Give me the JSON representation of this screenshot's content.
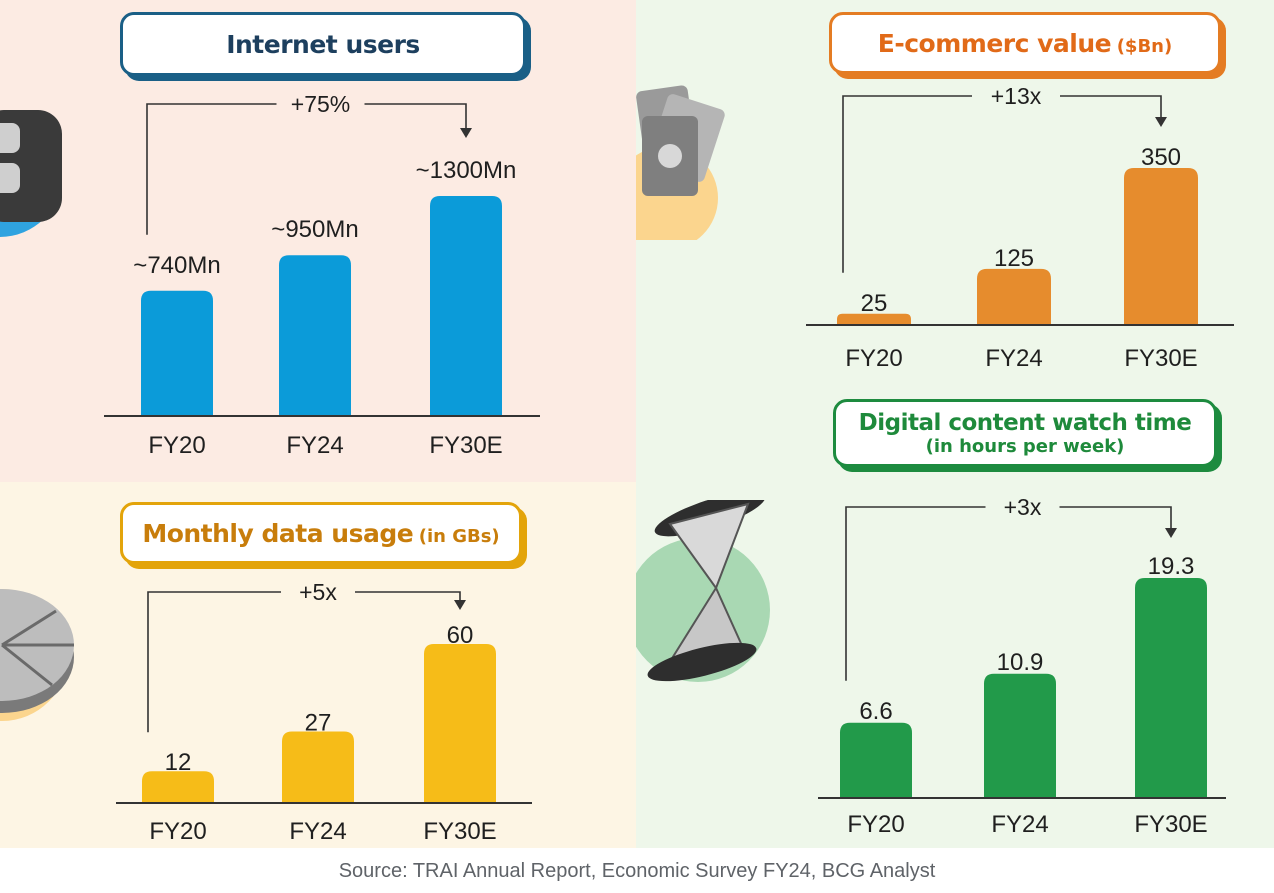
{
  "source": "Source: TRAI Annual Report, Economic Survey FY24, BCG Analyst",
  "colors": {
    "internet": "#0b9bd9",
    "ecommerce": "#e68c2d",
    "data": "#f6bc18",
    "watch": "#229a4a"
  },
  "icons": {
    "internet": "phone-icon",
    "ecommerce": "money-icon",
    "data": "pie-chart-icon",
    "watch": "hourglass-icon"
  },
  "chart_data": [
    {
      "id": "internet",
      "type": "bar",
      "title": "Internet users",
      "subtitle": "",
      "categories": [
        "FY20",
        "FY24",
        "FY30E"
      ],
      "values": [
        740,
        950,
        1300
      ],
      "data_labels": [
        "~740Mn",
        "~950Mn",
        "~1300Mn"
      ],
      "growth_label": "+75%",
      "ylabel": "",
      "ylim": [
        0,
        1300
      ]
    },
    {
      "id": "ecommerce",
      "type": "bar",
      "title": "E-commerc value",
      "subtitle": "($Bn)",
      "categories": [
        "FY20",
        "FY24",
        "FY30E"
      ],
      "values": [
        25,
        125,
        350
      ],
      "data_labels": [
        "25",
        "125",
        "350"
      ],
      "growth_label": "+13x",
      "ylabel": "",
      "ylim": [
        0,
        350
      ]
    },
    {
      "id": "data",
      "type": "bar",
      "title": "Monthly data usage",
      "subtitle": "(in GBs)",
      "categories": [
        "FY20",
        "FY24",
        "FY30E"
      ],
      "values": [
        12,
        27,
        60
      ],
      "data_labels": [
        "12",
        "27",
        "60"
      ],
      "growth_label": "+5x",
      "ylabel": "",
      "ylim": [
        0,
        60
      ]
    },
    {
      "id": "watch",
      "type": "bar",
      "title": "Digital content watch time",
      "subtitle": "(in hours per week)",
      "categories": [
        "FY20",
        "FY24",
        "FY30E"
      ],
      "values": [
        6.6,
        10.9,
        19.3
      ],
      "data_labels": [
        "6.6",
        "10.9",
        "19.3"
      ],
      "growth_label": "+3x",
      "ylabel": "",
      "ylim": [
        0,
        19.3
      ]
    }
  ]
}
